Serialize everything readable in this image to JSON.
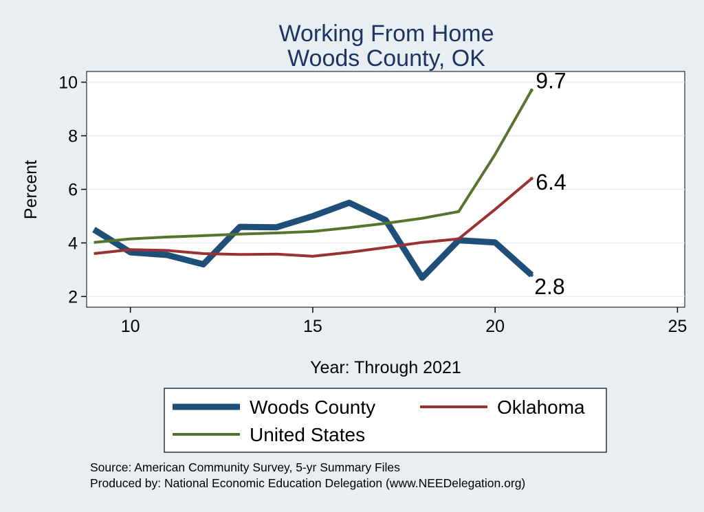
{
  "chart_data": {
    "type": "line",
    "title": [
      "Working From Home",
      "Woods County, OK"
    ],
    "xlabel": "Year: Through 2021",
    "ylabel": "Percent",
    "xlim": [
      8.8,
      25.2
    ],
    "ylim": [
      1.6,
      10.4
    ],
    "xticks": [
      10,
      15,
      20,
      25
    ],
    "yticks": [
      2,
      4,
      6,
      8,
      10
    ],
    "grid": true,
    "legend_position": "bottom",
    "series": [
      {
        "name": "Woods County",
        "color": "#1f4e79",
        "x": [
          9,
          10,
          11,
          12,
          13,
          14,
          15,
          16,
          17,
          18,
          19,
          20,
          21
        ],
        "y": [
          4.5,
          3.65,
          3.55,
          3.2,
          4.6,
          4.58,
          5.0,
          5.5,
          4.85,
          2.7,
          4.1,
          4.02,
          2.8
        ],
        "end_label": "2.8"
      },
      {
        "name": "Oklahoma",
        "color": "#993333",
        "x": [
          9,
          10,
          11,
          12,
          13,
          14,
          15,
          16,
          17,
          18,
          19,
          20,
          21
        ],
        "y": [
          3.6,
          3.75,
          3.72,
          3.6,
          3.57,
          3.58,
          3.5,
          3.65,
          3.83,
          4.02,
          4.15,
          5.25,
          6.4
        ],
        "end_label": "6.4"
      },
      {
        "name": "United States",
        "color": "#55752f",
        "x": [
          9,
          10,
          11,
          12,
          13,
          14,
          15,
          16,
          17,
          18,
          19,
          20,
          21
        ],
        "y": [
          4.02,
          4.15,
          4.22,
          4.27,
          4.33,
          4.37,
          4.43,
          4.57,
          4.73,
          4.92,
          5.17,
          7.3,
          9.7
        ],
        "end_label": "9.7"
      }
    ],
    "notes": [
      "Source: American Community Survey, 5-yr Summary Files",
      "Produced by: National Economic Education Delegation (www.NEEDelegation.org)"
    ]
  }
}
